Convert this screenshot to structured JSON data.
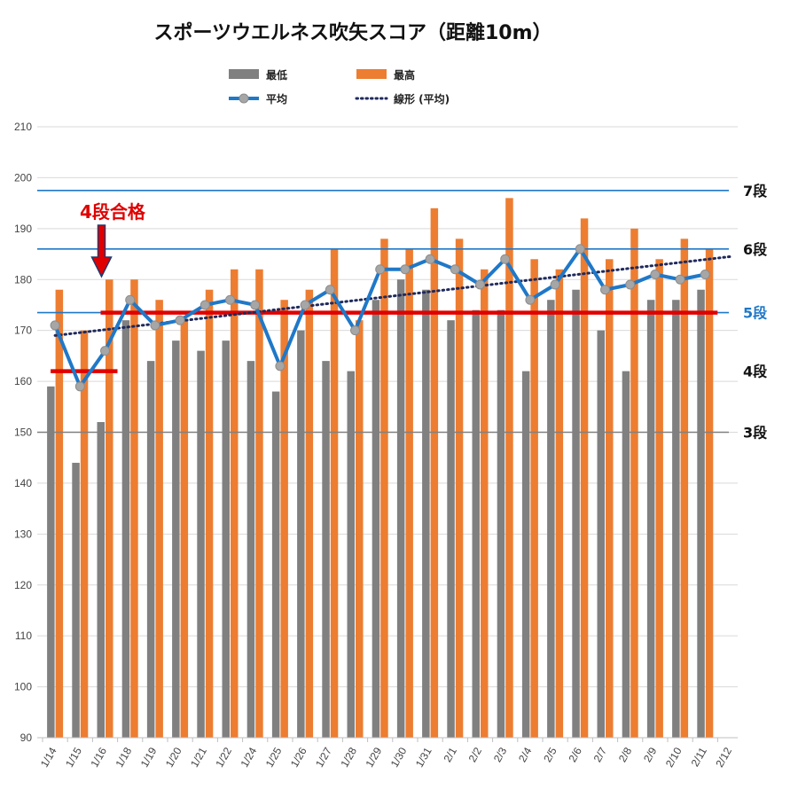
{
  "chart_data": {
    "type": "bar",
    "title": "スポーツウエルネス吹矢スコア（距離10m）",
    "categories": [
      "1/14",
      "1/15",
      "1/16",
      "1/18",
      "1/19",
      "1/20",
      "1/21",
      "1/22",
      "1/24",
      "1/25",
      "1/26",
      "1/27",
      "1/28",
      "1/29",
      "1/30",
      "1/31",
      "2/1",
      "2/2",
      "2/3",
      "2/4",
      "2/5",
      "2/6",
      "2/7",
      "2/8",
      "2/9",
      "2/10",
      "2/11",
      "2/12"
    ],
    "series": [
      {
        "name": "最低",
        "type": "bar",
        "color": "#808080",
        "values": [
          159,
          144,
          152,
          172,
          164,
          168,
          166,
          168,
          164,
          158,
          170,
          164,
          162,
          176,
          180,
          178,
          172,
          174,
          174,
          162,
          176,
          178,
          170,
          162,
          176,
          176,
          178,
          null
        ]
      },
      {
        "name": "最高",
        "type": "bar",
        "color": "#ED7D31",
        "values": [
          178,
          170,
          180,
          180,
          176,
          172,
          178,
          182,
          182,
          176,
          178,
          186,
          172,
          188,
          186,
          194,
          188,
          182,
          196,
          184,
          182,
          192,
          184,
          190,
          184,
          188,
          186,
          null
        ]
      },
      {
        "name": "平均",
        "type": "line",
        "color": "#1F78C8",
        "values": [
          171,
          159,
          166,
          176,
          171,
          172,
          175,
          176,
          175,
          163,
          175,
          178,
          170,
          182,
          182,
          184,
          182,
          179,
          184,
          176,
          179,
          186,
          178,
          179,
          181,
          180,
          181,
          null
        ]
      }
    ],
    "trendline": {
      "name": "線形 (平均)",
      "color": "#1F2A5C",
      "from": 169,
      "to": 184.5
    },
    "ylim": [
      90,
      210
    ],
    "yticks": [
      90,
      100,
      110,
      120,
      130,
      140,
      150,
      160,
      170,
      180,
      190,
      200,
      210
    ],
    "grid": true,
    "legend_position": "top",
    "reference_lines": [
      {
        "label": "7段",
        "value": 197.5,
        "color": "#1F78C8",
        "label_color": "#111111"
      },
      {
        "label": "6段",
        "value": 186,
        "color": "#1F78C8",
        "label_color": "#111111"
      },
      {
        "label": "5段",
        "value": 173.5,
        "color": "#1F78C8",
        "label_color": "#1F78C8"
      },
      {
        "label": "4段",
        "value": 162,
        "color": "#E00000",
        "label_color": "#111111"
      },
      {
        "label": "3段",
        "value": 150,
        "color": "#808080",
        "label_color": "#111111"
      }
    ],
    "red_segments": [
      {
        "value": 162,
        "from_category": "1/14",
        "to_category": "1/16"
      },
      {
        "value": 173.5,
        "from_category": "1/16",
        "to_category": "2/11"
      }
    ],
    "annotation": {
      "text": "4段合格",
      "color": "#E00000",
      "category": "1/16"
    }
  }
}
